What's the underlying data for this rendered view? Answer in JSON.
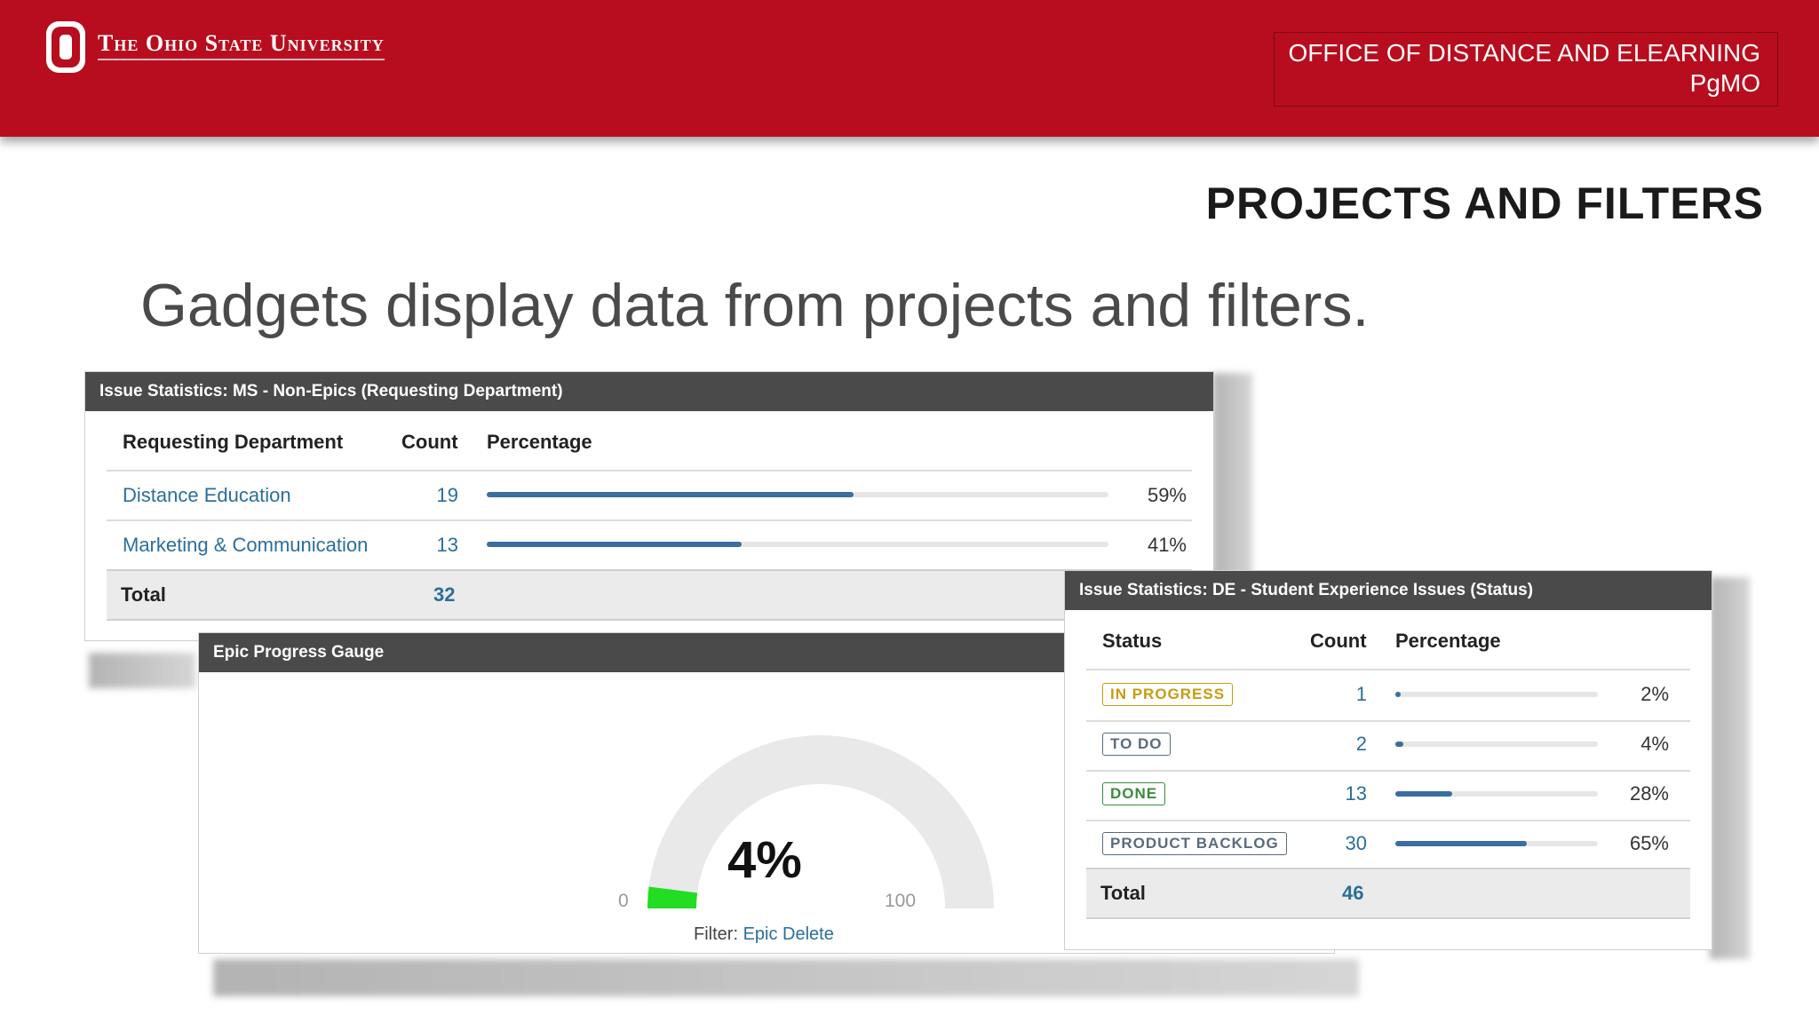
{
  "header": {
    "university": "The Ohio State University",
    "office_line1": "OFFICE OF DISTANCE AND ELEARNING",
    "office_line2": "PgMO"
  },
  "slide": {
    "title": "PROJECTS AND FILTERS",
    "subtitle": "Gadgets display data from projects and filters."
  },
  "gadget1": {
    "title": "Issue Statistics: MS - Non-Epics (Requesting Department)",
    "col_dept": "Requesting Department",
    "col_count": "Count",
    "col_pct": "Percentage",
    "rows": [
      {
        "label": "Distance Education",
        "count": "19",
        "percent": "59%",
        "fraction": 0.59
      },
      {
        "label": "Marketing & Communication",
        "count": "13",
        "percent": "41%",
        "fraction": 0.41
      }
    ],
    "total_label": "Total",
    "total": "32"
  },
  "gadget2": {
    "title": "Epic Progress Gauge",
    "value": "4%",
    "fraction": 0.04,
    "min": "0",
    "max": "100",
    "filter_label": "Filter:",
    "filter_name": "Epic Delete"
  },
  "gadget3": {
    "title": "Issue Statistics: DE - Student Experience Issues (Status)",
    "col_status": "Status",
    "col_count": "Count",
    "col_pct": "Percentage",
    "rows": [
      {
        "status": "IN PROGRESS",
        "count": "1",
        "percent": "2%",
        "fraction": 0.02,
        "color": "#c99a10"
      },
      {
        "status": "TO DO",
        "count": "2",
        "percent": "4%",
        "fraction": 0.04,
        "color": "#5a6b7d"
      },
      {
        "status": "DONE",
        "count": "13",
        "percent": "28%",
        "fraction": 0.28,
        "color": "#3b8a3e"
      },
      {
        "status": "PRODUCT BACKLOG",
        "count": "30",
        "percent": "65%",
        "fraction": 0.65,
        "color": "#5a6b7d"
      }
    ],
    "total_label": "Total",
    "total": "46"
  },
  "colors": {
    "brand_red": "#b80d1e",
    "bar_blue": "#3a6ea0",
    "gauge_green": "#22dd22",
    "link_blue": "#2a6f9a"
  }
}
